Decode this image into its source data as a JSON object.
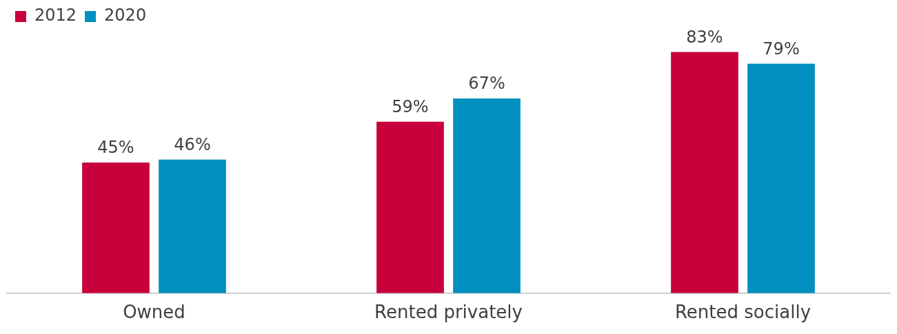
{
  "chart_data": {
    "type": "bar",
    "categories": [
      "Owned",
      "Rented privately",
      "Rented socially"
    ],
    "series": [
      {
        "name": "2012",
        "color": "#c8003c",
        "values": [
          45,
          59,
          83
        ],
        "value_labels": [
          "45%",
          "59%",
          "83%"
        ]
      },
      {
        "name": "2020",
        "color": "#008fbf",
        "values": [
          46,
          67,
          79
        ],
        "value_labels": [
          "46%",
          "67%",
          "79%"
        ]
      }
    ],
    "legend": "top left",
    "grid": false,
    "tick_labels": "x"
  }
}
